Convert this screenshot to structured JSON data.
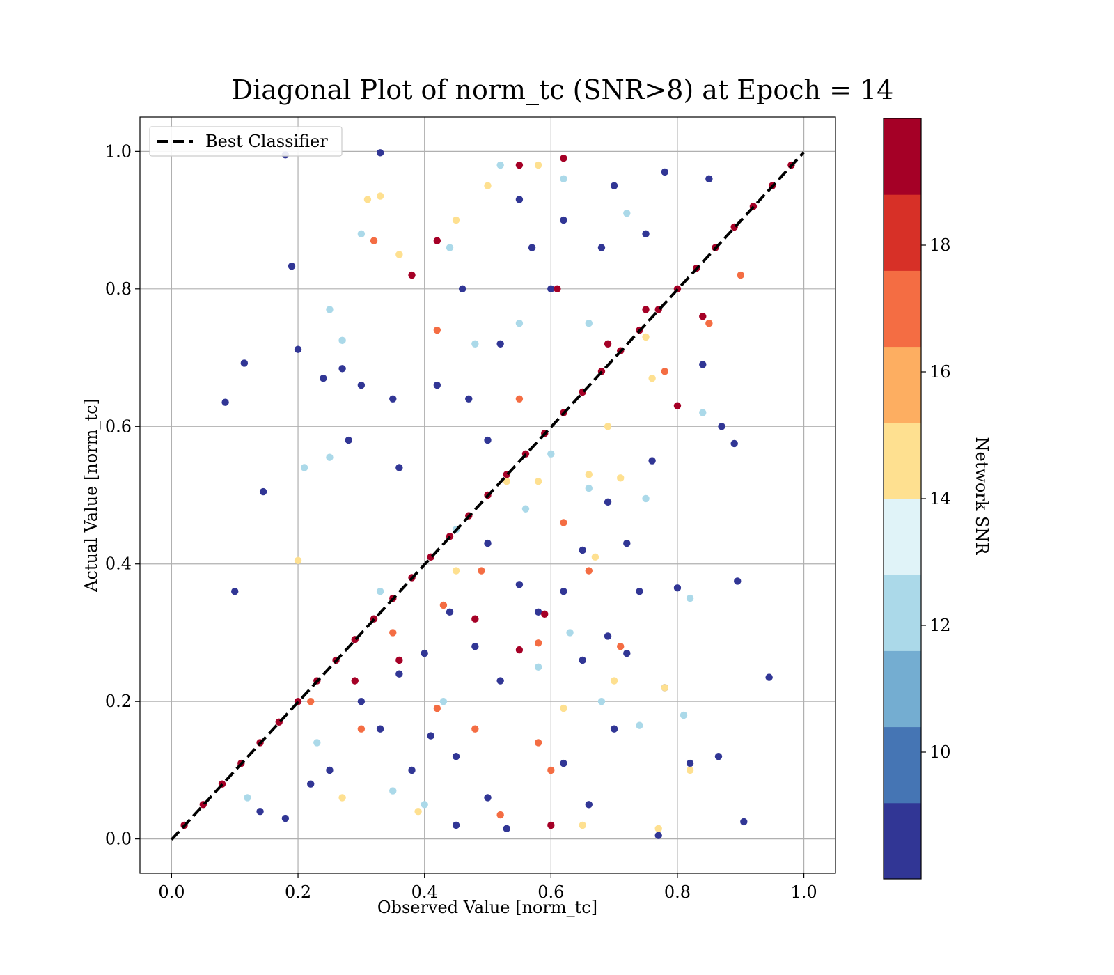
{
  "chart_data": {
    "type": "scatter",
    "title": "Diagonal Plot of norm_tc (SNR>8) at Epoch = 14",
    "xlabel": "Observed Value [norm_tc]",
    "ylabel": "Actual Value [norm_tc]",
    "xlim": [
      -0.05,
      1.05
    ],
    "ylim": [
      -0.05,
      1.05
    ],
    "xticks": [
      "0.0",
      "0.2",
      "0.4",
      "0.6",
      "0.8",
      "1.0"
    ],
    "yticks": [
      "0.0",
      "0.2",
      "0.4",
      "0.6",
      "0.8",
      "1.0"
    ],
    "grid": true,
    "legend": {
      "location": "upper-left",
      "entries": [
        "Best Classifier"
      ]
    },
    "reference_line": {
      "label": "Best Classifier",
      "x": [
        0,
        1
      ],
      "y": [
        0,
        1
      ],
      "style": "dashed",
      "color": "#000000"
    },
    "colorbar": {
      "label": "Network SNR",
      "range": [
        8,
        20
      ],
      "ticks": [
        "10",
        "12",
        "14",
        "16",
        "18"
      ],
      "colors": [
        "#313695",
        "#4575b4",
        "#74add1",
        "#abd9e9",
        "#e0f3f8",
        "#fee090",
        "#fdae61",
        "#f46d43",
        "#d73027",
        "#a50026"
      ]
    },
    "series": [
      {
        "description": "Points clustered along the diagonal (high SNR, dark red), approximate sample of the band",
        "points": [
          [
            0.02,
            0.02,
            19
          ],
          [
            0.05,
            0.05,
            19
          ],
          [
            0.08,
            0.08,
            19
          ],
          [
            0.11,
            0.11,
            19
          ],
          [
            0.14,
            0.14,
            19
          ],
          [
            0.17,
            0.17,
            19
          ],
          [
            0.2,
            0.2,
            19
          ],
          [
            0.23,
            0.23,
            19
          ],
          [
            0.26,
            0.26,
            19
          ],
          [
            0.29,
            0.29,
            19
          ],
          [
            0.32,
            0.32,
            19
          ],
          [
            0.35,
            0.35,
            19
          ],
          [
            0.38,
            0.38,
            19
          ],
          [
            0.41,
            0.41,
            19
          ],
          [
            0.44,
            0.44,
            19
          ],
          [
            0.47,
            0.47,
            19
          ],
          [
            0.5,
            0.5,
            19
          ],
          [
            0.53,
            0.53,
            19
          ],
          [
            0.56,
            0.56,
            19
          ],
          [
            0.59,
            0.59,
            19
          ],
          [
            0.62,
            0.62,
            19
          ],
          [
            0.65,
            0.65,
            19
          ],
          [
            0.68,
            0.68,
            19
          ],
          [
            0.71,
            0.71,
            19
          ],
          [
            0.74,
            0.74,
            19
          ],
          [
            0.77,
            0.77,
            19
          ],
          [
            0.8,
            0.8,
            19
          ],
          [
            0.83,
            0.83,
            19
          ],
          [
            0.86,
            0.86,
            19
          ],
          [
            0.89,
            0.89,
            19
          ],
          [
            0.92,
            0.92,
            19
          ],
          [
            0.95,
            0.95,
            19
          ],
          [
            0.98,
            0.98,
            19
          ]
        ]
      },
      {
        "description": "Scattered low-SNR outliers (approximate)",
        "points": [
          [
            0.18,
            0.995,
            9
          ],
          [
            0.33,
            0.998,
            9
          ],
          [
            0.19,
            0.833,
            9
          ],
          [
            0.085,
            0.635,
            9
          ],
          [
            0.115,
            0.692,
            9
          ],
          [
            0.2,
            0.712,
            9
          ],
          [
            0.145,
            0.505,
            9
          ],
          [
            0.1,
            0.36,
            9
          ],
          [
            0.3,
            0.66,
            9
          ],
          [
            0.24,
            0.67,
            9
          ],
          [
            0.27,
            0.684,
            9
          ],
          [
            0.28,
            0.58,
            9
          ],
          [
            0.35,
            0.64,
            9
          ],
          [
            0.36,
            0.54,
            9
          ],
          [
            0.42,
            0.66,
            9
          ],
          [
            0.8,
            0.365,
            9
          ],
          [
            0.74,
            0.36,
            9
          ],
          [
            0.895,
            0.375,
            9
          ],
          [
            0.945,
            0.235,
            9
          ],
          [
            0.905,
            0.025,
            9
          ],
          [
            0.77,
            0.005,
            9
          ],
          [
            0.865,
            0.12,
            9
          ],
          [
            0.82,
            0.11,
            9
          ],
          [
            0.7,
            0.16,
            9
          ],
          [
            0.78,
            0.22,
            9
          ],
          [
            0.65,
            0.26,
            9
          ],
          [
            0.72,
            0.27,
            9
          ],
          [
            0.69,
            0.295,
            9
          ],
          [
            0.58,
            0.33,
            9
          ],
          [
            0.6,
            0.02,
            19
          ],
          [
            0.53,
            0.015,
            9
          ],
          [
            0.45,
            0.02,
            9
          ],
          [
            0.38,
            0.1,
            9
          ],
          [
            0.33,
            0.16,
            9
          ],
          [
            0.45,
            0.12,
            9
          ],
          [
            0.5,
            0.06,
            9
          ],
          [
            0.41,
            0.15,
            9
          ],
          [
            0.36,
            0.24,
            9
          ],
          [
            0.52,
            0.23,
            9
          ],
          [
            0.48,
            0.28,
            9
          ],
          [
            0.62,
            0.11,
            9
          ],
          [
            0.66,
            0.05,
            9
          ],
          [
            0.62,
            0.9,
            9
          ],
          [
            0.52,
            0.72,
            9
          ],
          [
            0.47,
            0.64,
            9
          ],
          [
            0.57,
            0.86,
            9
          ],
          [
            0.5,
            0.58,
            9
          ],
          [
            0.46,
            0.8,
            9
          ],
          [
            0.55,
            0.93,
            9
          ],
          [
            0.6,
            0.8,
            9
          ],
          [
            0.68,
            0.86,
            9
          ],
          [
            0.75,
            0.88,
            9
          ],
          [
            0.7,
            0.95,
            9
          ],
          [
            0.78,
            0.97,
            9
          ],
          [
            0.85,
            0.96,
            9
          ],
          [
            0.87,
            0.6,
            9
          ],
          [
            0.89,
            0.575,
            9
          ],
          [
            0.76,
            0.55,
            9
          ],
          [
            0.84,
            0.69,
            9
          ],
          [
            0.65,
            0.42,
            9
          ],
          [
            0.72,
            0.43,
            9
          ],
          [
            0.69,
            0.49,
            9
          ],
          [
            0.62,
            0.36,
            9
          ],
          [
            0.55,
            0.37,
            9
          ],
          [
            0.5,
            0.43,
            9
          ],
          [
            0.44,
            0.33,
            9
          ],
          [
            0.4,
            0.27,
            9
          ],
          [
            0.3,
            0.2,
            9
          ],
          [
            0.25,
            0.1,
            9
          ],
          [
            0.22,
            0.08,
            9
          ],
          [
            0.18,
            0.03,
            9
          ],
          [
            0.14,
            0.04,
            9
          ],
          [
            0.3,
            0.88,
            12
          ],
          [
            0.25,
            0.77,
            12
          ],
          [
            0.27,
            0.725,
            12
          ],
          [
            0.21,
            0.54,
            12
          ],
          [
            0.25,
            0.555,
            12
          ],
          [
            0.44,
            0.86,
            12
          ],
          [
            0.48,
            0.72,
            12
          ],
          [
            0.62,
            0.96,
            12
          ],
          [
            0.52,
            0.98,
            12
          ],
          [
            0.82,
            0.35,
            12
          ],
          [
            0.81,
            0.18,
            12
          ],
          [
            0.74,
            0.165,
            12
          ],
          [
            0.56,
            0.48,
            12
          ],
          [
            0.6,
            0.56,
            12
          ],
          [
            0.66,
            0.51,
            12
          ],
          [
            0.75,
            0.495,
            12
          ],
          [
            0.84,
            0.62,
            12
          ],
          [
            0.58,
            0.25,
            12
          ],
          [
            0.43,
            0.2,
            12
          ],
          [
            0.35,
            0.07,
            12
          ],
          [
            0.23,
            0.14,
            12
          ],
          [
            0.12,
            0.06,
            12
          ],
          [
            0.72,
            0.91,
            12
          ],
          [
            0.66,
            0.75,
            12
          ],
          [
            0.55,
            0.75,
            12
          ],
          [
            0.45,
            0.45,
            12
          ],
          [
            0.33,
            0.36,
            12
          ],
          [
            0.4,
            0.05,
            12
          ],
          [
            0.63,
            0.3,
            12
          ],
          [
            0.68,
            0.2,
            12
          ],
          [
            0.33,
            0.935,
            15
          ],
          [
            0.36,
            0.85,
            15
          ],
          [
            0.31,
            0.93,
            15
          ],
          [
            0.2,
            0.405,
            15
          ],
          [
            0.71,
            0.525,
            15
          ],
          [
            0.67,
            0.41,
            15
          ],
          [
            0.75,
            0.73,
            15
          ],
          [
            0.65,
            0.02,
            15
          ],
          [
            0.77,
            0.015,
            15
          ],
          [
            0.82,
            0.1,
            15
          ],
          [
            0.66,
            0.53,
            15
          ],
          [
            0.53,
            0.52,
            15
          ],
          [
            0.58,
            0.52,
            15
          ],
          [
            0.45,
            0.39,
            15
          ],
          [
            0.39,
            0.04,
            15
          ],
          [
            0.27,
            0.06,
            15
          ],
          [
            0.7,
            0.23,
            15
          ],
          [
            0.62,
            0.19,
            15
          ],
          [
            0.78,
            0.22,
            15
          ],
          [
            0.58,
            0.98,
            15
          ],
          [
            0.5,
            0.95,
            15
          ],
          [
            0.45,
            0.9,
            15
          ],
          [
            0.76,
            0.67,
            15
          ],
          [
            0.69,
            0.6,
            15
          ],
          [
            0.32,
            0.87,
            17
          ],
          [
            0.42,
            0.74,
            17
          ],
          [
            0.55,
            0.64,
            17
          ],
          [
            0.62,
            0.46,
            17
          ],
          [
            0.66,
            0.39,
            17
          ],
          [
            0.58,
            0.285,
            17
          ],
          [
            0.71,
            0.28,
            17
          ],
          [
            0.58,
            0.14,
            17
          ],
          [
            0.6,
            0.1,
            17
          ],
          [
            0.52,
            0.035,
            17
          ],
          [
            0.3,
            0.16,
            17
          ],
          [
            0.22,
            0.2,
            17
          ],
          [
            0.42,
            0.19,
            17
          ],
          [
            0.48,
            0.16,
            17
          ],
          [
            0.35,
            0.3,
            17
          ],
          [
            0.43,
            0.34,
            17
          ],
          [
            0.49,
            0.39,
            17
          ],
          [
            0.78,
            0.68,
            17
          ],
          [
            0.85,
            0.75,
            17
          ],
          [
            0.9,
            0.82,
            17
          ],
          [
            0.62,
            0.99,
            19
          ],
          [
            0.55,
            0.98,
            19
          ],
          [
            0.42,
            0.87,
            19
          ],
          [
            0.38,
            0.82,
            19
          ],
          [
            0.59,
            0.327,
            19
          ],
          [
            0.55,
            0.275,
            19
          ],
          [
            0.48,
            0.32,
            19
          ],
          [
            0.36,
            0.26,
            19
          ],
          [
            0.29,
            0.23,
            19
          ],
          [
            0.61,
            0.8,
            19
          ],
          [
            0.69,
            0.72,
            19
          ],
          [
            0.75,
            0.77,
            19
          ],
          [
            0.8,
            0.63,
            19
          ],
          [
            0.84,
            0.76,
            19
          ]
        ]
      }
    ]
  }
}
